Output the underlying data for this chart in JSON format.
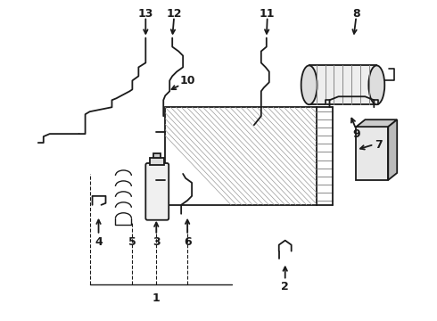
{
  "bg_color": "#ffffff",
  "lc": "#1a1a1a",
  "figsize": [
    4.9,
    3.6
  ],
  "dpi": 100
}
